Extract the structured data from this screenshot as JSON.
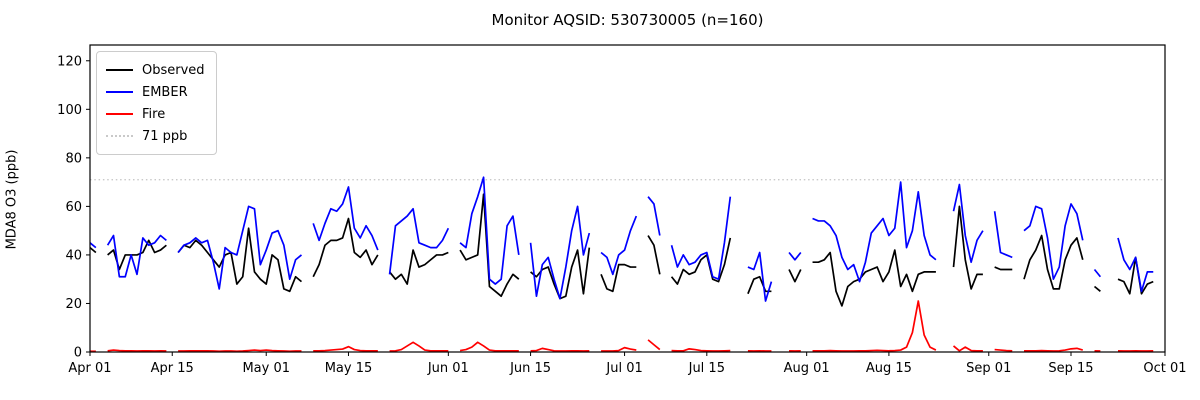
{
  "title": "Monitor AQSID: 530730005 (n=160)",
  "chart_data": {
    "type": "line",
    "title": "Monitor AQSID: 530730005 (n=160)",
    "xlabel": "",
    "ylabel": "MDA8 O3 (ppb)",
    "grid": false,
    "legend_position": "upper-left",
    "ylim": [
      0,
      126.5
    ],
    "yticks": [
      0,
      20,
      40,
      60,
      80,
      100,
      120
    ],
    "x_unit": "days since Apr 01",
    "xlim": [
      0,
      183
    ],
    "xtick_days": [
      0,
      14,
      30,
      44,
      61,
      75,
      91,
      105,
      122,
      136,
      153,
      167,
      183
    ],
    "xtick_labels": [
      "Apr 01",
      "Apr 15",
      "May 01",
      "May 15",
      "Jun 01",
      "Jun 15",
      "Jul 01",
      "Jul 15",
      "Aug 01",
      "Aug 15",
      "Sep 01",
      "Sep 15",
      "Oct 01"
    ],
    "threshold": {
      "value": 71,
      "label": "71 ppb",
      "color": "#c9c9c9",
      "style": "dotted"
    },
    "series": [
      {
        "name": "Observed",
        "color": "#000000",
        "style": "solid",
        "values": [
          43,
          41,
          null,
          40,
          42,
          34,
          40,
          40,
          40,
          41,
          46,
          41,
          42,
          44,
          null,
          41,
          44,
          43,
          46,
          44,
          41,
          38,
          35,
          40,
          41,
          28,
          31,
          51,
          33,
          30,
          28,
          40,
          38,
          26,
          25,
          31,
          29,
          null,
          31,
          36,
          44,
          46,
          46,
          47,
          55,
          41,
          39,
          42,
          36,
          40,
          null,
          33,
          30,
          32,
          28,
          42,
          35,
          36,
          38,
          40,
          40,
          41,
          null,
          42,
          38,
          39,
          40,
          65,
          27,
          25,
          23,
          28,
          32,
          30,
          null,
          33,
          31,
          34,
          35,
          28,
          22,
          23,
          35,
          42,
          24,
          43,
          null,
          32,
          26,
          25,
          36,
          36,
          35,
          35,
          null,
          48,
          44,
          32,
          null,
          31,
          28,
          34,
          32,
          33,
          38,
          40,
          30,
          29,
          36,
          47,
          null,
          null,
          24,
          30,
          31,
          25,
          25,
          null,
          null,
          34,
          29,
          34,
          null,
          37,
          37,
          38,
          41,
          25,
          19,
          27,
          29,
          30,
          33,
          34,
          35,
          29,
          33,
          42,
          27,
          32,
          25,
          32,
          33,
          33,
          33,
          null,
          null,
          35,
          60,
          38,
          26,
          32,
          32,
          null,
          35,
          34,
          34,
          34,
          null,
          30,
          38,
          42,
          48,
          34,
          26,
          26,
          38,
          44,
          47,
          38,
          null,
          27,
          25,
          null,
          null,
          30,
          29,
          24,
          39,
          24,
          28,
          29,
          null,
          null
        ]
      },
      {
        "name": "EMBER",
        "color": "#0000ff",
        "style": "solid",
        "values": [
          45,
          43,
          null,
          44,
          48,
          31,
          31,
          40,
          32,
          47,
          44,
          45,
          48,
          46,
          null,
          41,
          44,
          45,
          47,
          45,
          46,
          37,
          26,
          43,
          41,
          40,
          50,
          60,
          59,
          36,
          42,
          49,
          50,
          44,
          30,
          38,
          40,
          null,
          53,
          46,
          53,
          59,
          58,
          61,
          68,
          51,
          47,
          52,
          48,
          42,
          null,
          32,
          52,
          54,
          56,
          59,
          45,
          44,
          43,
          43,
          46,
          51,
          null,
          45,
          43,
          57,
          64,
          72,
          30,
          28,
          30,
          52,
          56,
          40,
          null,
          45,
          23,
          36,
          39,
          30,
          22,
          35,
          50,
          60,
          40,
          49,
          null,
          41,
          39,
          32,
          40,
          42,
          50,
          56,
          null,
          64,
          61,
          48,
          null,
          44,
          35,
          40,
          36,
          37,
          40,
          41,
          31,
          30,
          45,
          64,
          null,
          null,
          35,
          34,
          41,
          21,
          29,
          null,
          null,
          41,
          38,
          41,
          null,
          55,
          54,
          54,
          52,
          48,
          39,
          34,
          36,
          29,
          37,
          49,
          52,
          55,
          48,
          51,
          70,
          43,
          50,
          66,
          48,
          40,
          38,
          null,
          null,
          58,
          69,
          48,
          37,
          46,
          50,
          null,
          58,
          41,
          40,
          39,
          null,
          50,
          52,
          60,
          59,
          47,
          30,
          35,
          52,
          61,
          57,
          46,
          null,
          34,
          31,
          null,
          null,
          47,
          38,
          34,
          39,
          25,
          33,
          33,
          null,
          null
        ]
      },
      {
        "name": "Fire",
        "color": "#ff0000",
        "style": "solid",
        "values": [
          0.3,
          0.3,
          null,
          0.5,
          0.8,
          0.6,
          0.5,
          0.5,
          0.4,
          0.5,
          0.5,
          0.4,
          0.5,
          0.4,
          null,
          0.4,
          0.4,
          0.5,
          0.5,
          0.5,
          0.5,
          0.4,
          0.3,
          0.4,
          0.4,
          0.3,
          0.4,
          0.6,
          0.8,
          0.6,
          0.8,
          0.6,
          0.5,
          0.4,
          0.3,
          0.4,
          0.4,
          null,
          0.5,
          0.5,
          0.6,
          0.8,
          1,
          1.2,
          2.2,
          1,
          0.6,
          0.5,
          0.5,
          0.5,
          null,
          0.4,
          0.5,
          1,
          2.5,
          4,
          2.5,
          0.8,
          0.5,
          0.5,
          0.5,
          0.5,
          null,
          0.6,
          1,
          2,
          4,
          2.5,
          0.8,
          0.5,
          0.5,
          0.5,
          0.5,
          0.5,
          null,
          0.5,
          0.6,
          1.5,
          1,
          0.5,
          0.4,
          0.4,
          0.5,
          0.5,
          0.4,
          0.5,
          null,
          0.4,
          0.4,
          0.4,
          0.6,
          1.8,
          1.2,
          0.8,
          null,
          5,
          3,
          1,
          null,
          0.6,
          0.5,
          0.5,
          1.3,
          1,
          0.6,
          0.5,
          0.4,
          0.4,
          0.5,
          0.6,
          null,
          null,
          0.5,
          0.4,
          0.5,
          0.4,
          0.4,
          null,
          null,
          0.5,
          0.4,
          0.5,
          null,
          0.5,
          0.5,
          0.5,
          0.6,
          0.5,
          0.4,
          0.4,
          0.4,
          0.5,
          0.5,
          0.6,
          0.7,
          0.6,
          0.5,
          0.6,
          0.8,
          2,
          8,
          21,
          7,
          2,
          0.8,
          null,
          null,
          2.5,
          0.5,
          2,
          0.6,
          0.5,
          0.5,
          null,
          1,
          0.8,
          0.6,
          0.5,
          null,
          0.5,
          0.5,
          0.5,
          0.6,
          0.5,
          0.4,
          0.5,
          0.8,
          1.3,
          1.5,
          0.8,
          null,
          0.5,
          0.4,
          null,
          null,
          0.5,
          0.4,
          0.4,
          0.5,
          0.4,
          0.4,
          0.5,
          null,
          null
        ]
      }
    ],
    "legend_entries": [
      "Observed",
      "EMBER",
      "Fire",
      "71 ppb"
    ]
  }
}
